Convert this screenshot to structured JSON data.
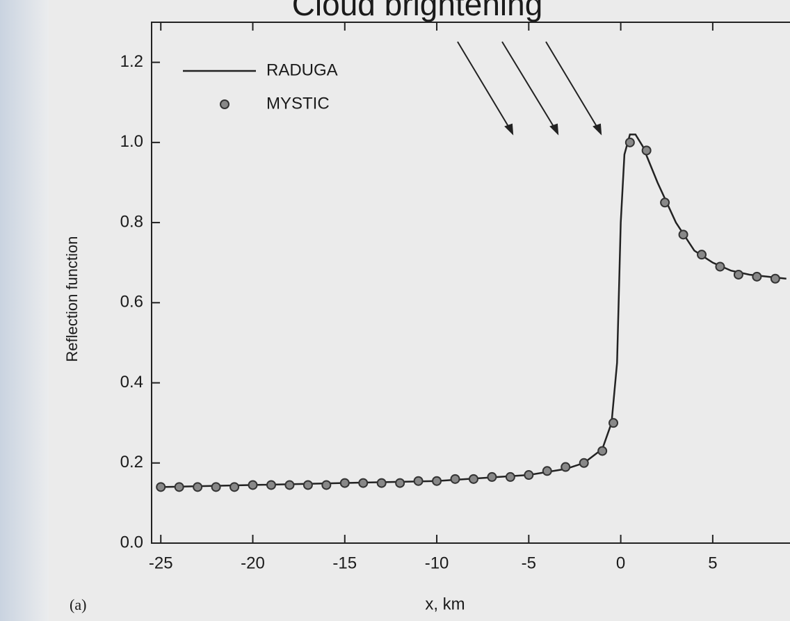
{
  "chart_data": {
    "type": "line",
    "title": "Cloud brightening",
    "xlabel": "x, km",
    "ylabel": "Reflection function",
    "annotation": "(a)",
    "xlim": [
      -25.5,
      9.2
    ],
    "ylim": [
      0,
      1.3
    ],
    "xticks": [
      -25,
      -20,
      -15,
      -10,
      -5,
      0,
      5
    ],
    "yticks": [
      {
        "value": 0,
        "label": "0.0"
      },
      0.2,
      0.4,
      0.6,
      0.8,
      {
        "value": 1,
        "label": "1.0"
      },
      1.2
    ],
    "legend": "upper left",
    "series": [
      {
        "name": "RADUGA",
        "color": "#222222",
        "marker": "line",
        "x": [
          -25,
          -10,
          -5,
          -3,
          -2,
          -1,
          -0.5,
          -0.2,
          0,
          0.2,
          0.5,
          0.8,
          1.2,
          2,
          3,
          4,
          5,
          6,
          7,
          8,
          9
        ],
        "values": [
          0.14,
          0.155,
          0.17,
          0.185,
          0.2,
          0.235,
          0.3,
          0.45,
          0.8,
          0.97,
          1.02,
          1.02,
          0.99,
          0.9,
          0.8,
          0.73,
          0.7,
          0.68,
          0.67,
          0.665,
          0.66
        ]
      },
      {
        "name": "MYSTIC",
        "color": "#333333",
        "marker": "dot",
        "x": [
          -25,
          -24,
          -23,
          -22,
          -21,
          -20,
          -19,
          -18,
          -17,
          -16,
          -15,
          -14,
          -13,
          -12,
          -11,
          -10,
          -9,
          -8,
          -7,
          -6,
          -5,
          -4,
          -3,
          -2,
          -1,
          -0.4,
          0.5,
          1.4,
          2.4,
          3.4,
          4.4,
          5.4,
          6.4,
          7.4,
          8.4
        ],
        "values": [
          0.14,
          0.14,
          0.14,
          0.14,
          0.14,
          0.145,
          0.145,
          0.145,
          0.145,
          0.145,
          0.15,
          0.15,
          0.15,
          0.15,
          0.155,
          0.155,
          0.16,
          0.16,
          0.165,
          0.165,
          0.17,
          0.18,
          0.19,
          0.2,
          0.23,
          0.3,
          1.0,
          0.98,
          0.85,
          0.77,
          0.72,
          0.69,
          0.67,
          0.665,
          0.66
        ]
      }
    ]
  }
}
